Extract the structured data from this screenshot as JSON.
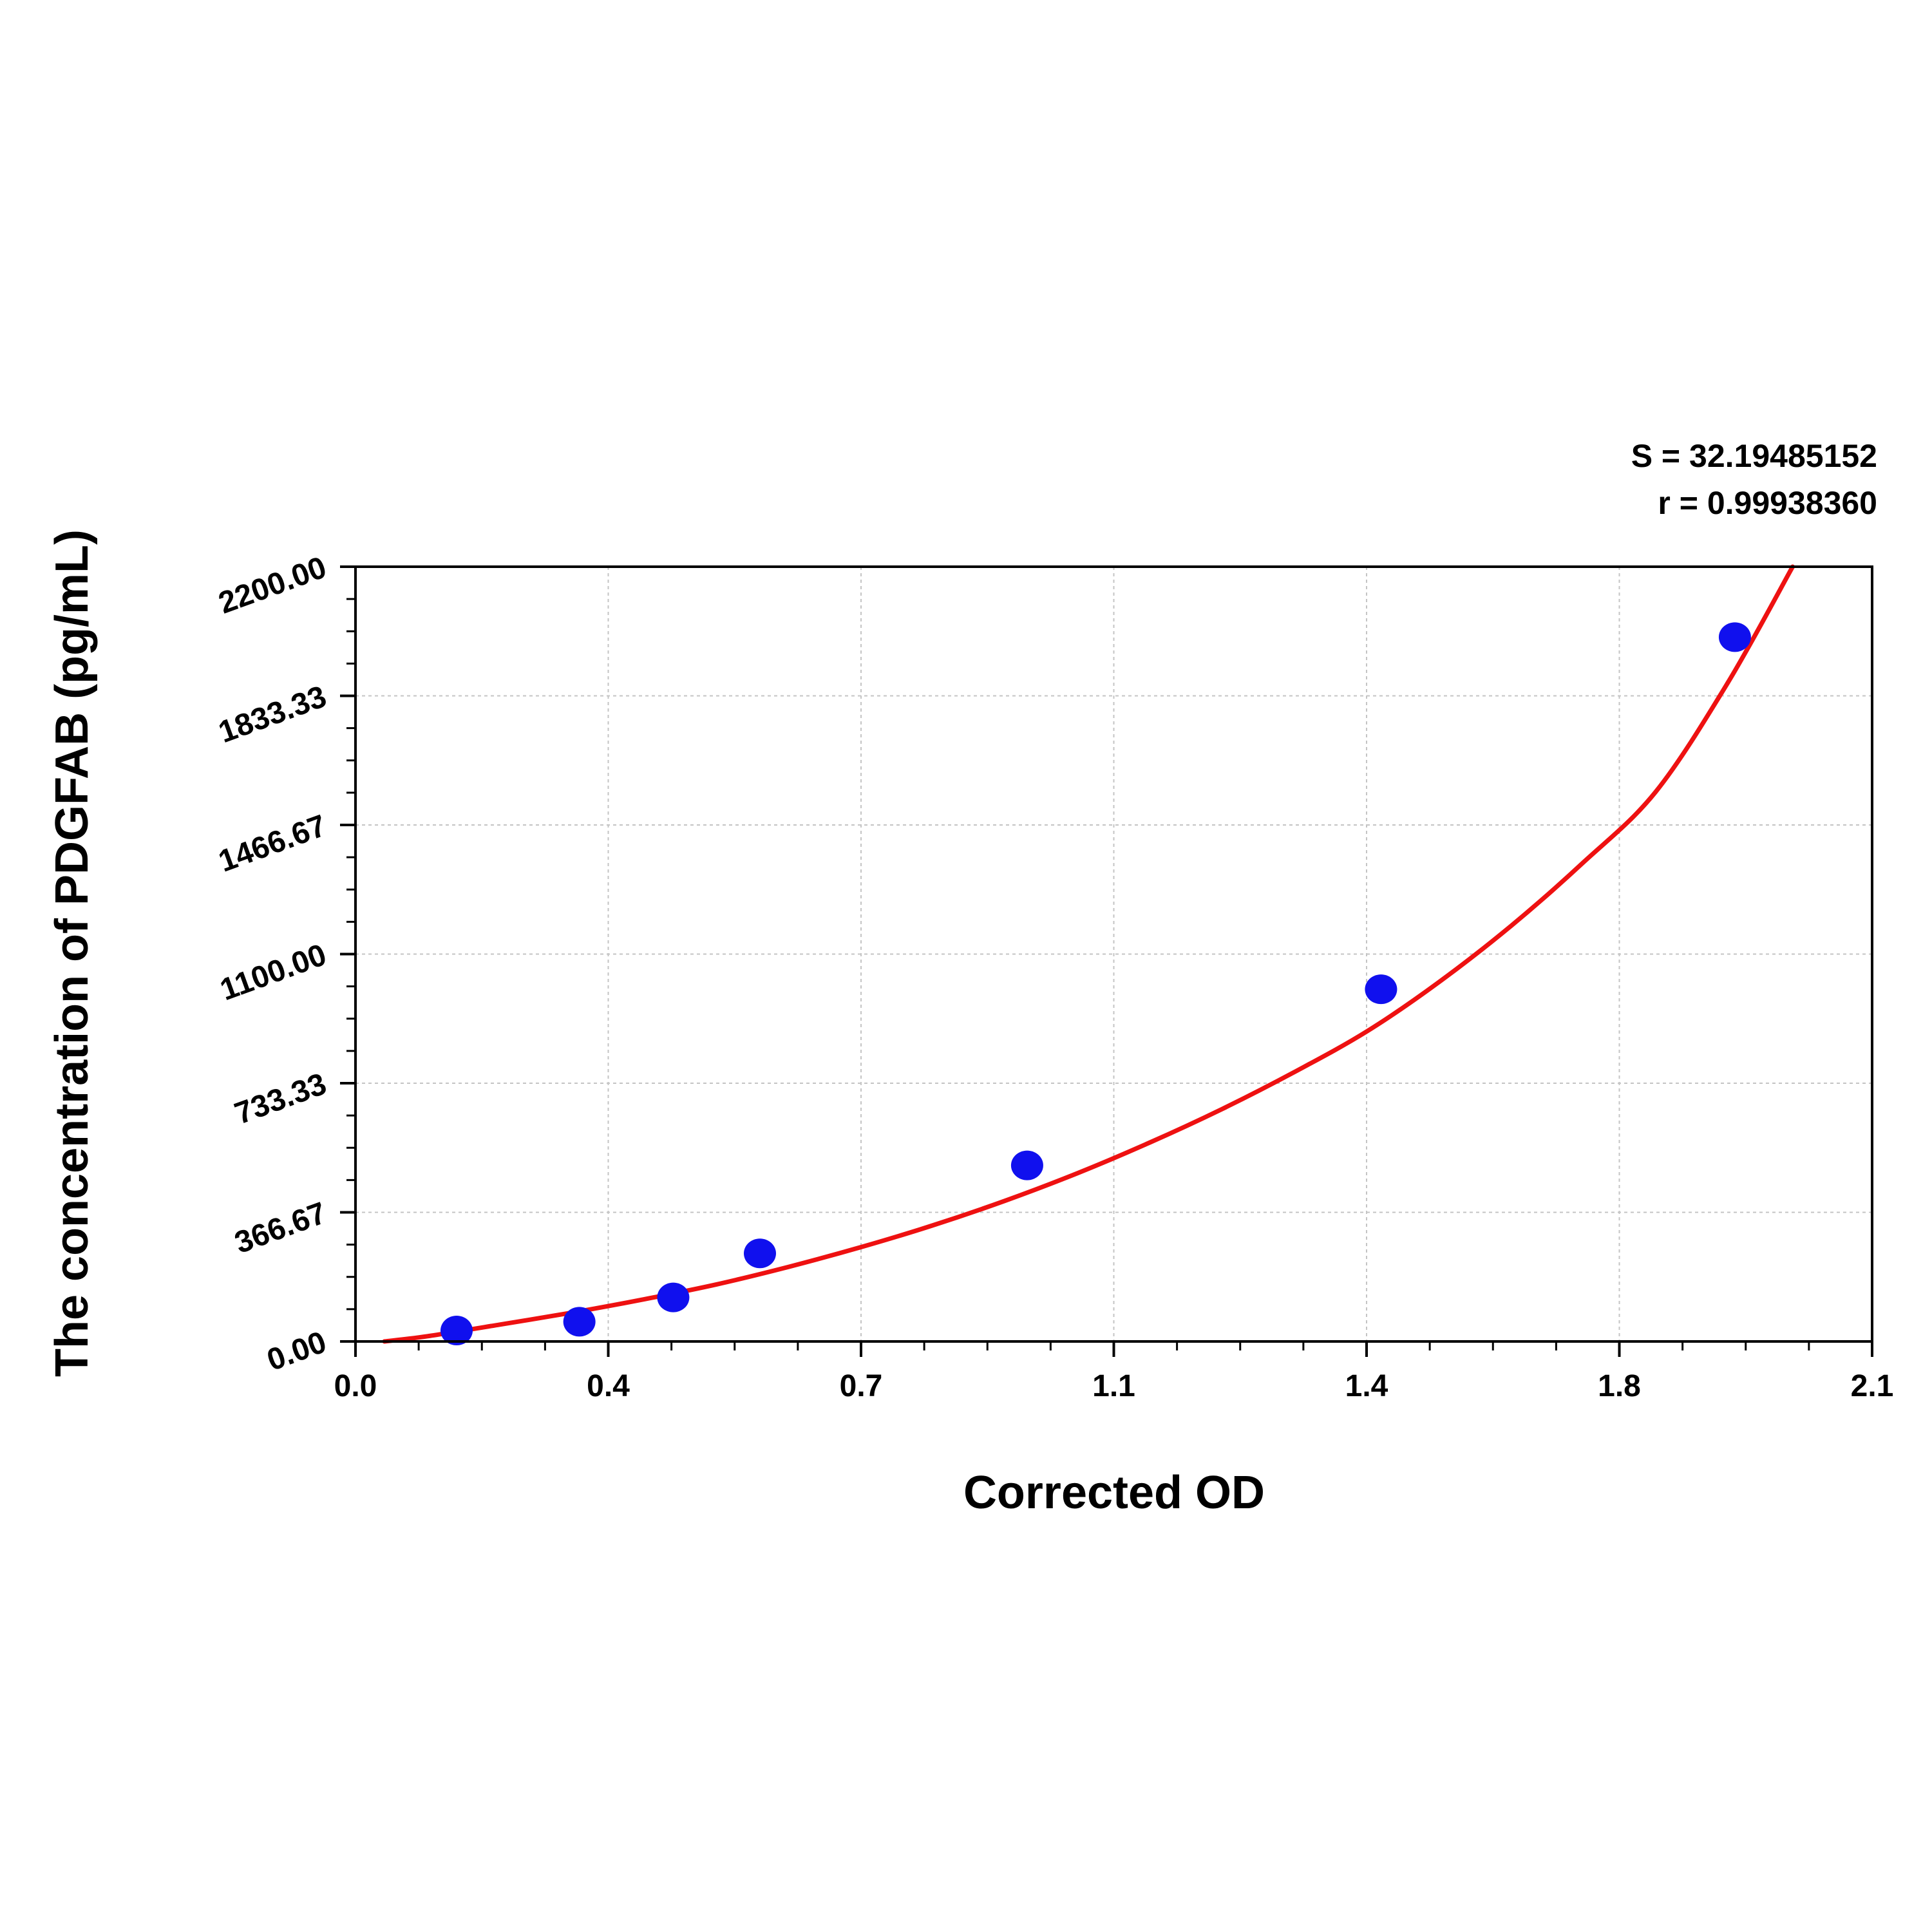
{
  "chart_data": {
    "type": "scatter",
    "title": "",
    "xlabel": "Corrected OD",
    "ylabel": "The concentration of PDGFAB (pg/mL)",
    "xlim": [
      0.0,
      2.1
    ],
    "ylim": [
      0.0,
      2200.0
    ],
    "x_ticks": [
      "0.0",
      "0.4",
      "0.7",
      "1.1",
      "1.4",
      "1.8",
      "2.1"
    ],
    "y_ticks": [
      "0.00",
      "366.67",
      "733.33",
      "1100.00",
      "1466.67",
      "1833.33",
      "2200.00"
    ],
    "grid": true,
    "series": [
      {
        "kind": "points",
        "color": "#1010ee",
        "x": [
          0.14,
          0.31,
          0.44,
          0.56,
          0.93,
          1.42,
          1.91
        ],
        "y": [
          31,
          56,
          125,
          250,
          500,
          1000,
          2000
        ]
      },
      {
        "kind": "fitted-curve",
        "color": "#ee1111",
        "x": [
          0.04,
          0.1,
          0.2,
          0.3,
          0.4,
          0.5,
          0.6,
          0.7,
          0.8,
          0.9,
          1.0,
          1.1,
          1.2,
          1.3,
          1.4,
          1.5,
          1.6,
          1.7,
          1.8,
          1.9,
          1.99
        ],
        "y": [
          0,
          15,
          48,
          82,
          120,
          162,
          212,
          268,
          330,
          400,
          478,
          565,
          660,
          765,
          880,
          1020,
          1180,
          1360,
          1560,
          1870,
          2200
        ]
      }
    ],
    "annotations": {
      "s_label": "S = 32.19485152",
      "r_label": "r = 0.99938360"
    }
  }
}
